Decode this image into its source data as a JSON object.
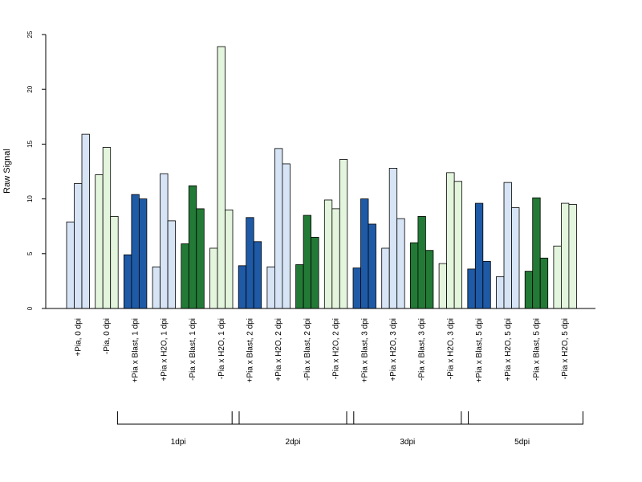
{
  "chart_data": {
    "type": "bar",
    "ylabel": "Raw Signal",
    "xlabel": "",
    "ylim": [
      0,
      25
    ],
    "yticks": [
      0,
      5,
      10,
      15,
      20,
      25
    ],
    "grid": false,
    "colors": {
      "light_blue": "#d6e4f5",
      "dark_blue": "#1f5aa6",
      "light_green": "#e3f5dc",
      "dark_green": "#237a36",
      "axis": "#000000",
      "bar_border": "#000000"
    },
    "categories": [
      {
        "label": "+Pia, 0 dpi",
        "color": "light_blue",
        "values": [
          7.9,
          11.4,
          15.9
        ]
      },
      {
        "label": "-Pia, 0 dpi",
        "color": "light_green",
        "values": [
          12.2,
          14.7,
          8.4
        ]
      },
      {
        "label": "+Pia x Blast, 1 dpi",
        "color": "dark_blue",
        "values": [
          4.9,
          10.4,
          10.0
        ]
      },
      {
        "label": "+Pia x H2O, 1 dpi",
        "color": "light_blue",
        "values": [
          3.8,
          12.3,
          8.0
        ]
      },
      {
        "label": "-Pia x Blast, 1 dpi",
        "color": "dark_green",
        "values": [
          5.9,
          11.2,
          9.1
        ]
      },
      {
        "label": "-Pia x H2O, 1 dpi",
        "color": "light_green",
        "values": [
          5.5,
          23.9,
          9.0
        ]
      },
      {
        "label": "+Pia x Blast, 2 dpi",
        "color": "dark_blue",
        "values": [
          3.9,
          8.3,
          6.1
        ]
      },
      {
        "label": "+Pia x H2O, 2 dpi",
        "color": "light_blue",
        "values": [
          3.8,
          14.6,
          13.2
        ]
      },
      {
        "label": "-Pia x Blast, 2 dpi",
        "color": "dark_green",
        "values": [
          4.0,
          8.5,
          6.5
        ]
      },
      {
        "label": "-Pia x H2O, 2 dpi",
        "color": "light_green",
        "values": [
          9.9,
          9.1,
          13.6
        ]
      },
      {
        "label": "+Pia x Blast, 3 dpi",
        "color": "dark_blue",
        "values": [
          3.7,
          10.0,
          7.7
        ]
      },
      {
        "label": "+Pia x H2O, 3 dpi",
        "color": "light_blue",
        "values": [
          5.5,
          12.8,
          8.2
        ]
      },
      {
        "label": "-Pia x Blast, 3 dpi",
        "color": "dark_green",
        "values": [
          6.0,
          8.4,
          5.3
        ]
      },
      {
        "label": "-Pia x H2O, 3 dpi",
        "color": "light_green",
        "values": [
          4.1,
          12.4,
          11.6
        ]
      },
      {
        "label": "+Pia x Blast, 5 dpi",
        "color": "dark_blue",
        "values": [
          3.6,
          9.6,
          4.3
        ]
      },
      {
        "label": "+Pia x H2O, 5 dpi",
        "color": "light_blue",
        "values": [
          2.9,
          11.5,
          9.2
        ]
      },
      {
        "label": "-Pia x Blast, 5 dpi",
        "color": "dark_green",
        "values": [
          3.4,
          10.1,
          4.6
        ]
      },
      {
        "label": "-Pia x H2O, 5 dpi",
        "color": "light_green",
        "values": [
          5.7,
          9.6,
          9.5
        ]
      }
    ],
    "groups": [
      {
        "label": "1dpi",
        "start": 2,
        "end": 5
      },
      {
        "label": "2dpi",
        "start": 6,
        "end": 9
      },
      {
        "label": "3dpi",
        "start": 10,
        "end": 13
      },
      {
        "label": "5dpi",
        "start": 14,
        "end": 17
      }
    ]
  }
}
